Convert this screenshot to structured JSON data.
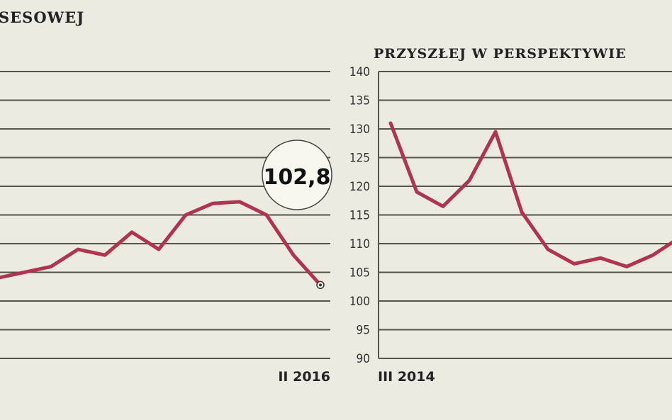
{
  "chart_data": [
    {
      "type": "line",
      "title": "SESOWEJ",
      "ylim": [
        90,
        140
      ],
      "x_end_label": "II 2016",
      "annotation": "102,8",
      "values": [
        104,
        105,
        106,
        109,
        108,
        112,
        109,
        115,
        117,
        117.3,
        115,
        108,
        102.8
      ],
      "color": "#b0344f"
    },
    {
      "type": "line",
      "title": "PRZYSZŁEJ W PERSPEKTYWIE",
      "ylim": [
        90,
        140
      ],
      "yticks": [
        140,
        135,
        130,
        125,
        120,
        115,
        110,
        105,
        100,
        95,
        90
      ],
      "x_start_label": "III 2014",
      "values": [
        131,
        119,
        116.5,
        121,
        129.5,
        115.5,
        109,
        106.5,
        107.5,
        106,
        108,
        111
      ],
      "color": "#b0344f"
    }
  ]
}
